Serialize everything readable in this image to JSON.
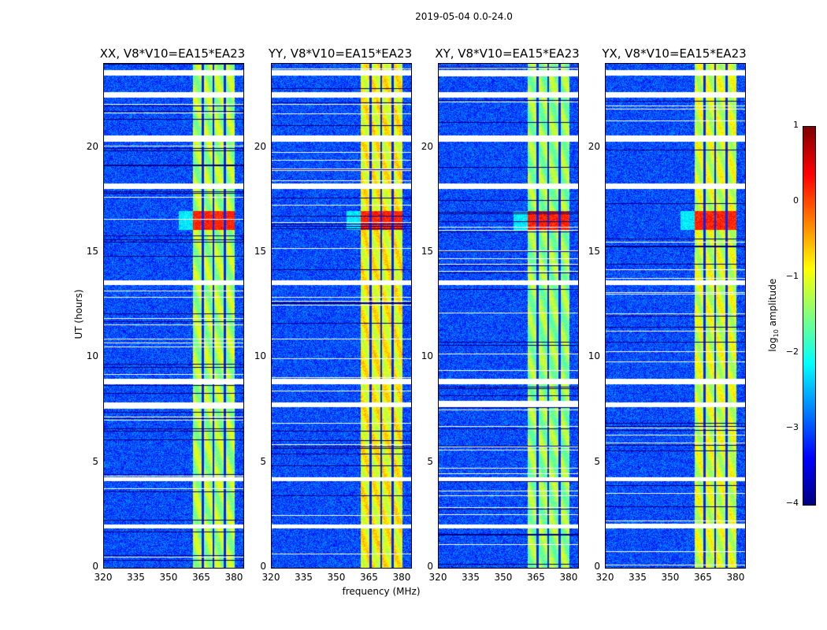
{
  "chart_data": {
    "type": "heatmap",
    "suptitle": "2019-05-04 0.0-24.0",
    "xlabel": "frequency (MHz)",
    "ylabel": "UT (hours)",
    "xlim": [
      320,
      384
    ],
    "ylim": [
      0,
      24
    ],
    "xticks": [
      "320",
      "335",
      "350",
      "365",
      "380"
    ],
    "xtick_values": [
      320,
      335,
      350,
      365,
      380
    ],
    "yticks": [
      "0",
      "5",
      "10",
      "15",
      "20"
    ],
    "ytick_values": [
      0,
      5,
      10,
      15,
      20
    ],
    "panels": [
      {
        "title": "XX, V8*V10=EA15*EA23",
        "band_level": -1.3
      },
      {
        "title": "YY, V8*V10=EA15*EA23",
        "band_level": -0.9
      },
      {
        "title": "XY, V8*V10=EA15*EA23",
        "band_level": -1.4
      },
      {
        "title": "YX, V8*V10=EA15*EA23",
        "band_level": -1.1
      }
    ],
    "background_level": -3.0,
    "rfi_band_mhz": [
      360.5,
      380
    ],
    "rfi_gaps_mhz": [
      365.2,
      370.2,
      375.3
    ],
    "strong_event_hours": [
      16.1,
      17.0
    ],
    "strong_event_level": 0.2,
    "flagged_hours": [
      [
        23.45,
        23.7
      ],
      [
        22.4,
        22.65
      ],
      [
        20.3,
        20.6
      ],
      [
        18.05,
        18.3
      ],
      [
        13.5,
        13.7
      ],
      [
        8.75,
        9.0
      ],
      [
        7.65,
        7.9
      ],
      [
        4.15,
        4.35
      ],
      [
        1.9,
        2.1
      ]
    ],
    "colorbar": {
      "label": "log10 amplitude",
      "label_main": "log",
      "label_sub": "10",
      "label_rest": " amplitude",
      "range": [
        -4,
        1
      ],
      "ticks": [
        "1",
        "0",
        "−1",
        "−2",
        "−3",
        "−4"
      ],
      "tick_values": [
        1,
        0,
        -1,
        -2,
        -3,
        -4
      ],
      "colormap": "jet"
    }
  }
}
